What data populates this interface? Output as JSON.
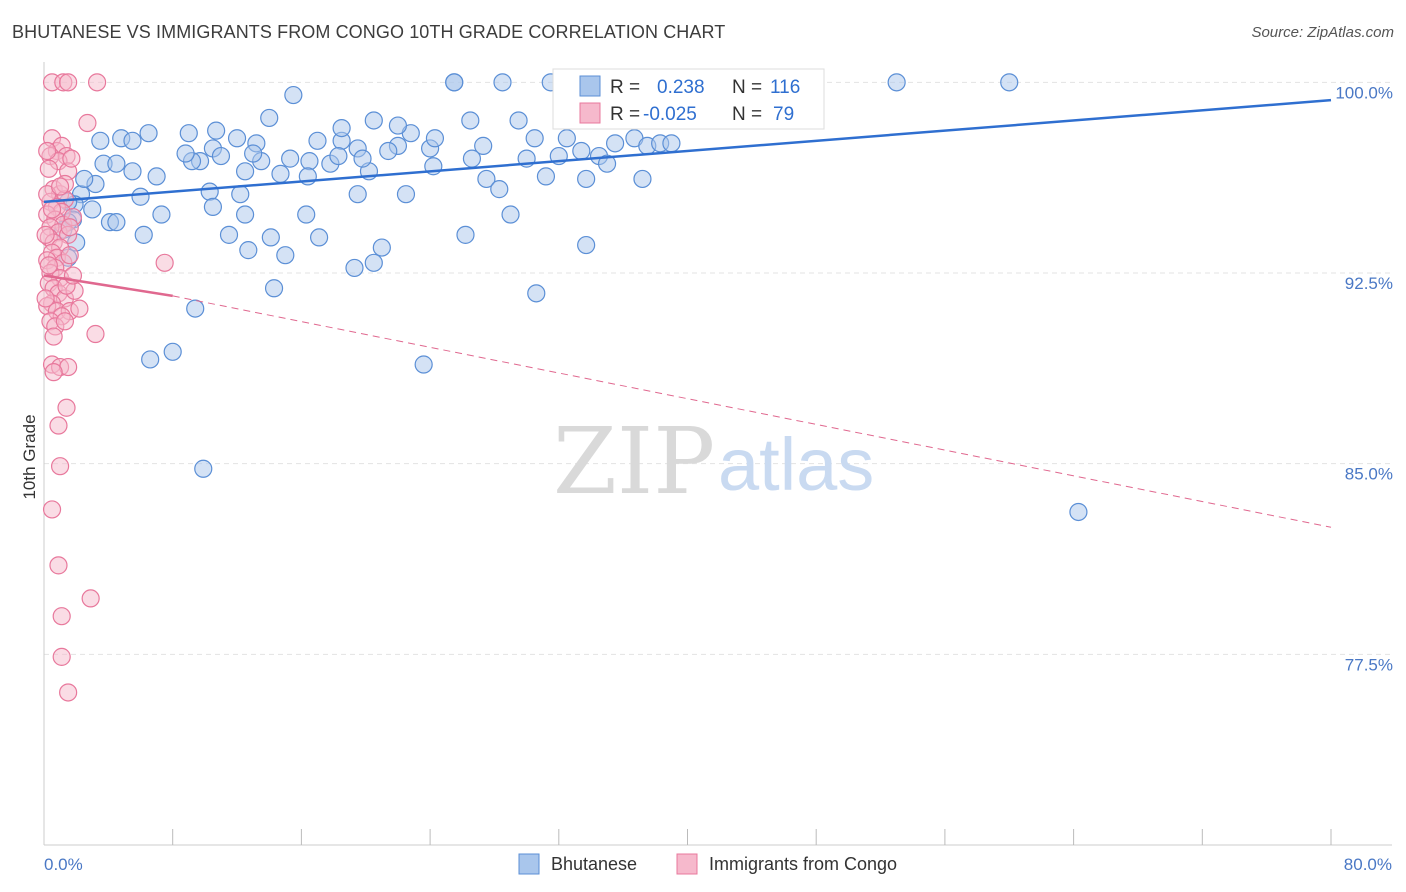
{
  "title": "BHUTANESE VS IMMIGRANTS FROM CONGO 10TH GRADE CORRELATION CHART",
  "source": "Source: ZipAtlas.com",
  "watermark": {
    "zip": "ZIP",
    "atlas": "atlas"
  },
  "chart_data": {
    "type": "scatter",
    "xlabel": "",
    "ylabel": "10th Grade",
    "xlim": [
      0,
      80
    ],
    "ylim": [
      70,
      100.8
    ],
    "x_tick_labels": [
      "0.0%",
      "80.0%"
    ],
    "y_ticks": [
      {
        "value": 100,
        "label": "100.0%"
      },
      {
        "value": 92.5,
        "label": "92.5%"
      },
      {
        "value": 85,
        "label": "85.0%"
      },
      {
        "value": 77.5,
        "label": "77.5%"
      }
    ],
    "legend": {
      "position": "top-center",
      "entries": [
        {
          "name": "Bhutanese",
          "r_label": "R =",
          "r_value": "0.238",
          "n_label": "N =",
          "n_value": "116"
        },
        {
          "name": "Immigrants from Congo",
          "r_label": "R =",
          "r_value": "-0.025",
          "n_label": "N =",
          "n_value": "79"
        }
      ]
    },
    "colors": {
      "blue_fill": "#a9c6ec",
      "blue_stroke": "#5b8fd6",
      "blue_line": "#2f6fd0",
      "pink_fill": "#f6b9cc",
      "pink_stroke": "#e8789c",
      "pink_line": "#e0688f",
      "blue_text": "#2f6fd0",
      "grid": "#e3e3e3"
    },
    "series": [
      {
        "name": "Bhutanese",
        "trend": {
          "x": [
            0,
            80
          ],
          "y": [
            95.3,
            99.3
          ],
          "style": "solid"
        },
        "points": [
          [
            25.5,
            100
          ],
          [
            28.5,
            100
          ],
          [
            31.5,
            100
          ],
          [
            36,
            100
          ],
          [
            43,
            100
          ],
          [
            45.5,
            100
          ],
          [
            53,
            100
          ],
          [
            60,
            100
          ],
          [
            25.5,
            100
          ],
          [
            15.5,
            99.5
          ],
          [
            33,
            99.2
          ],
          [
            36,
            99
          ],
          [
            37.5,
            99.3
          ],
          [
            14,
            98.6
          ],
          [
            20.5,
            98.5
          ],
          [
            6.5,
            98
          ],
          [
            4.8,
            97.8
          ],
          [
            5.5,
            97.7
          ],
          [
            9,
            98
          ],
          [
            10.7,
            98.1
          ],
          [
            10.5,
            97.4
          ],
          [
            12,
            97.8
          ],
          [
            13.2,
            97.6
          ],
          [
            17,
            97.7
          ],
          [
            18.5,
            97.7
          ],
          [
            19.5,
            97.4
          ],
          [
            22,
            97.5
          ],
          [
            22.8,
            98
          ],
          [
            24,
            97.4
          ],
          [
            24.3,
            97.8
          ],
          [
            27.3,
            97.5
          ],
          [
            30.5,
            97.8
          ],
          [
            32.5,
            97.8
          ],
          [
            33.4,
            97.3
          ],
          [
            35.5,
            97.6
          ],
          [
            36.7,
            97.8
          ],
          [
            37.5,
            97.5
          ],
          [
            38.3,
            97.6
          ],
          [
            39,
            97.6
          ],
          [
            11,
            97.1
          ],
          [
            13.5,
            96.9
          ],
          [
            16.5,
            96.9
          ],
          [
            15.3,
            97
          ],
          [
            17.8,
            96.8
          ],
          [
            18.3,
            97.1
          ],
          [
            21.4,
            97.3
          ],
          [
            26.6,
            97
          ],
          [
            32,
            97.1
          ],
          [
            34.5,
            97.1
          ],
          [
            3.7,
            96.8
          ],
          [
            4.5,
            96.8
          ],
          [
            5.5,
            96.5
          ],
          [
            9.7,
            96.9
          ],
          [
            9.2,
            96.9
          ],
          [
            7,
            96.3
          ],
          [
            12.5,
            96.5
          ],
          [
            14.7,
            96.4
          ],
          [
            16.4,
            96.3
          ],
          [
            20.2,
            96.5
          ],
          [
            27.5,
            96.2
          ],
          [
            31.2,
            96.3
          ],
          [
            33.7,
            96.2
          ],
          [
            37.2,
            96.2
          ],
          [
            3.2,
            96
          ],
          [
            2.3,
            95.6
          ],
          [
            6,
            95.5
          ],
          [
            10.3,
            95.7
          ],
          [
            12.2,
            95.6
          ],
          [
            19.5,
            95.6
          ],
          [
            22.5,
            95.6
          ],
          [
            28.3,
            95.8
          ],
          [
            1.9,
            95.2
          ],
          [
            10.5,
            95.1
          ],
          [
            12.5,
            94.8
          ],
          [
            1.8,
            94.6
          ],
          [
            1.5,
            94.5
          ],
          [
            4.1,
            94.5
          ],
          [
            4.5,
            94.5
          ],
          [
            7.3,
            94.8
          ],
          [
            16.3,
            94.8
          ],
          [
            29,
            94.8
          ],
          [
            11.5,
            94
          ],
          [
            14.1,
            93.9
          ],
          [
            17.1,
            93.9
          ],
          [
            26.2,
            94
          ],
          [
            12.7,
            93.4
          ],
          [
            15,
            93.2
          ],
          [
            21,
            93.5
          ],
          [
            33.7,
            93.6
          ],
          [
            1.5,
            93.1
          ],
          [
            19.3,
            92.7
          ],
          [
            20.5,
            92.9
          ],
          [
            14.3,
            91.9
          ],
          [
            30.6,
            91.7
          ],
          [
            9.4,
            91.1
          ],
          [
            6.6,
            89.1
          ],
          [
            8,
            89.4
          ],
          [
            23.6,
            88.9
          ],
          [
            9.9,
            84.8
          ],
          [
            64.3,
            83.1
          ],
          [
            1.5,
            95.3
          ],
          [
            2.5,
            96.2
          ],
          [
            8.8,
            97.2
          ],
          [
            18.5,
            98.2
          ],
          [
            22,
            98.3
          ],
          [
            26.5,
            98.5
          ],
          [
            29.5,
            98.5
          ],
          [
            34,
            98.7
          ],
          [
            39.5,
            99
          ],
          [
            3.5,
            97.7
          ],
          [
            13,
            97.2
          ],
          [
            19.8,
            97
          ],
          [
            24.2,
            96.7
          ],
          [
            30,
            97
          ],
          [
            1.2,
            94.2
          ],
          [
            2,
            93.7
          ],
          [
            3,
            95
          ],
          [
            6.2,
            94
          ],
          [
            35,
            96.8
          ]
        ]
      },
      {
        "name": "Immigrants from Congo",
        "trend": {
          "x": [
            0,
            8
          ],
          "y": [
            92.4,
            91.6
          ],
          "style": "solid",
          "extension": {
            "x": [
              8,
              80
            ],
            "y": [
              91.6,
              82.5
            ],
            "style": "dashed"
          }
        },
        "points": [
          [
            0.5,
            100
          ],
          [
            1.2,
            100
          ],
          [
            1.5,
            100
          ],
          [
            3.3,
            100
          ],
          [
            2.7,
            98.4
          ],
          [
            0.5,
            97.8
          ],
          [
            0.8,
            97.3
          ],
          [
            1.1,
            97.5
          ],
          [
            1.4,
            97.1
          ],
          [
            0.4,
            97.1
          ],
          [
            0.9,
            96.9
          ],
          [
            1.5,
            96.5
          ],
          [
            0.3,
            96.6
          ],
          [
            0.6,
            95.8
          ],
          [
            1.0,
            95.6
          ],
          [
            1.3,
            95.4
          ],
          [
            0.4,
            95.3
          ],
          [
            0.8,
            95.1
          ],
          [
            1.1,
            94.9
          ],
          [
            0.2,
            94.8
          ],
          [
            0.7,
            94.6
          ],
          [
            1.2,
            94.4
          ],
          [
            0.4,
            94.3
          ],
          [
            0.9,
            94.1
          ],
          [
            1.5,
            94.0
          ],
          [
            0.3,
            93.9
          ],
          [
            0.6,
            93.7
          ],
          [
            1.0,
            93.5
          ],
          [
            0.5,
            93.3
          ],
          [
            0.8,
            93.1
          ],
          [
            0.2,
            93.0
          ],
          [
            1.2,
            92.9
          ],
          [
            0.7,
            92.7
          ],
          [
            0.4,
            92.5
          ],
          [
            1.0,
            92.3
          ],
          [
            0.3,
            92.1
          ],
          [
            0.6,
            91.9
          ],
          [
            0.9,
            91.7
          ],
          [
            1.3,
            91.5
          ],
          [
            0.5,
            91.3
          ],
          [
            0.2,
            91.2
          ],
          [
            0.8,
            91.0
          ],
          [
            1.6,
            91.0
          ],
          [
            1.1,
            90.8
          ],
          [
            0.4,
            90.6
          ],
          [
            0.7,
            90.4
          ],
          [
            1.3,
            90.6
          ],
          [
            0.6,
            90.0
          ],
          [
            3.2,
            90.1
          ],
          [
            7.5,
            92.9
          ],
          [
            1.9,
            91.8
          ],
          [
            2.2,
            91.1
          ],
          [
            0.5,
            88.9
          ],
          [
            1.0,
            88.8
          ],
          [
            1.5,
            88.8
          ],
          [
            0.6,
            88.6
          ],
          [
            1.4,
            87.2
          ],
          [
            0.9,
            86.5
          ],
          [
            1.0,
            84.9
          ],
          [
            0.5,
            83.2
          ],
          [
            0.9,
            81.0
          ],
          [
            2.9,
            79.7
          ],
          [
            1.1,
            79.0
          ],
          [
            1.1,
            77.4
          ],
          [
            1.5,
            76.0
          ],
          [
            1.7,
            97.0
          ],
          [
            1.3,
            96.0
          ],
          [
            0.2,
            95.6
          ],
          [
            1.8,
            94.7
          ],
          [
            0.1,
            94.0
          ],
          [
            1.6,
            93.2
          ],
          [
            0.3,
            92.8
          ],
          [
            1.4,
            92.0
          ],
          [
            0.1,
            91.5
          ],
          [
            1.8,
            92.4
          ],
          [
            0.5,
            95.0
          ],
          [
            1.0,
            95.9
          ],
          [
            0.2,
            97.3
          ],
          [
            1.6,
            94.3
          ]
        ]
      }
    ]
  },
  "bottom_legend": [
    {
      "label": "Bhutanese"
    },
    {
      "label": "Immigrants from Congo"
    }
  ]
}
